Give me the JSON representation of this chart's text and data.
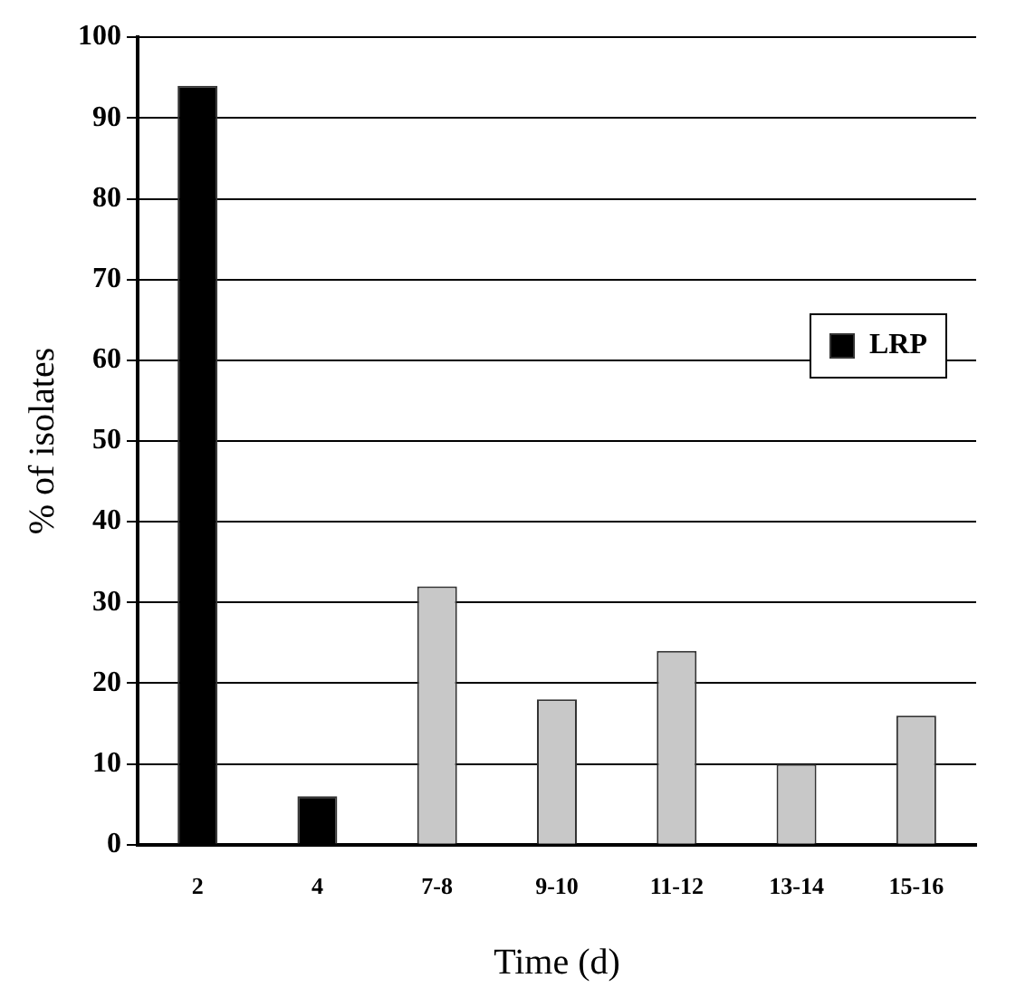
{
  "chart_data": {
    "type": "bar",
    "xlabel": "Time (d)",
    "ylabel": "% of isolates",
    "categories": [
      "2",
      "4",
      "7-8",
      "9-10",
      "11-12",
      "13-14",
      "15-16"
    ],
    "series": [
      {
        "name": "LRP",
        "color": "#000000",
        "values": [
          94,
          6,
          null,
          null,
          null,
          null,
          null
        ]
      },
      {
        "color": "#c8c8c8",
        "values": [
          null,
          null,
          32,
          18,
          24,
          10,
          16
        ]
      }
    ],
    "ylim": [
      0,
      100
    ],
    "yticks": [
      0,
      10,
      20,
      30,
      40,
      50,
      60,
      70,
      80,
      90,
      100
    ],
    "grid": "y",
    "legend": "right"
  }
}
